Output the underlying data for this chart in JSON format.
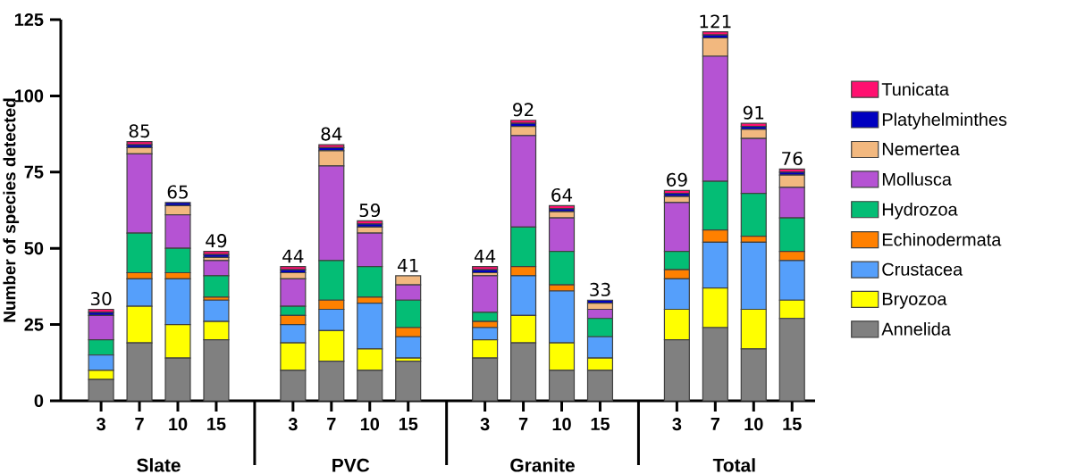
{
  "chart_data": {
    "type": "bar",
    "stacked": true,
    "ylabel": "Number of species detected",
    "categories": [
      "3",
      "7",
      "10",
      "15",
      null,
      "3",
      "7",
      "10",
      "15",
      null,
      "3",
      "7",
      "10",
      "15",
      null,
      "3",
      "7",
      "10",
      "15"
    ],
    "series": [
      {
        "name": "Annelida",
        "color": "#808080",
        "values": [
          7,
          19,
          14,
          20,
          null,
          10,
          13,
          10,
          13,
          null,
          14,
          19,
          10,
          10,
          null,
          20,
          24,
          17,
          27
        ]
      },
      {
        "name": "Bryozoa",
        "color": "#ffff00",
        "values": [
          3,
          12,
          11,
          6,
          null,
          9,
          10,
          7,
          1,
          null,
          6,
          9,
          9,
          4,
          null,
          10,
          13,
          13,
          6
        ]
      },
      {
        "name": "Crustacea",
        "color": "#559ffb",
        "values": [
          5,
          9,
          15,
          7,
          null,
          6,
          7,
          15,
          7,
          null,
          4,
          13,
          17,
          7,
          null,
          10,
          15,
          22,
          13
        ]
      },
      {
        "name": "Echinodermata",
        "color": "#ff8000",
        "values": [
          0,
          2,
          2,
          1,
          null,
          3,
          3,
          2,
          3,
          null,
          2,
          3,
          2,
          0,
          null,
          3,
          4,
          2,
          3
        ]
      },
      {
        "name": "Hydrozoa",
        "color": "#04bd75",
        "values": [
          5,
          13,
          8,
          7,
          null,
          3,
          13,
          10,
          9,
          null,
          3,
          13,
          11,
          6,
          null,
          6,
          16,
          14,
          11
        ]
      },
      {
        "name": "Mollusca",
        "color": "#b553d3",
        "values": [
          8,
          26,
          11,
          5,
          null,
          9,
          31,
          11,
          5,
          null,
          12,
          30,
          11,
          3,
          null,
          16,
          41,
          18,
          10
        ]
      },
      {
        "name": "Nemertea",
        "color": "#f2b87f",
        "values": [
          0,
          2,
          3,
          1,
          null,
          2,
          5,
          2,
          3,
          null,
          1,
          3,
          2,
          2,
          null,
          2,
          6,
          3,
          4
        ]
      },
      {
        "name": "Platyhelminthes",
        "color": "#0000c0",
        "values": [
          1,
          1,
          1,
          1,
          null,
          1,
          1,
          1,
          0,
          null,
          1,
          1,
          1,
          1,
          null,
          1,
          1,
          1,
          1
        ]
      },
      {
        "name": "Tunicata",
        "color": "#ff1070",
        "values": [
          1,
          1,
          0,
          1,
          null,
          1,
          1,
          1,
          0,
          null,
          1,
          1,
          1,
          0,
          null,
          1,
          1,
          1,
          1
        ]
      }
    ],
    "totals": [
      "30",
      "85",
      "65",
      "49",
      null,
      "44",
      "84",
      "59",
      "41",
      null,
      "44",
      "92",
      "64",
      "33",
      null,
      "69",
      "121",
      "91",
      "76"
    ],
    "annotations": [
      "Slate",
      "PVC",
      "Granite",
      "Total"
    ],
    "ylim": [
      0,
      125
    ],
    "yticks": [
      0,
      25,
      50,
      75,
      100,
      125
    ],
    "legend": "right"
  }
}
